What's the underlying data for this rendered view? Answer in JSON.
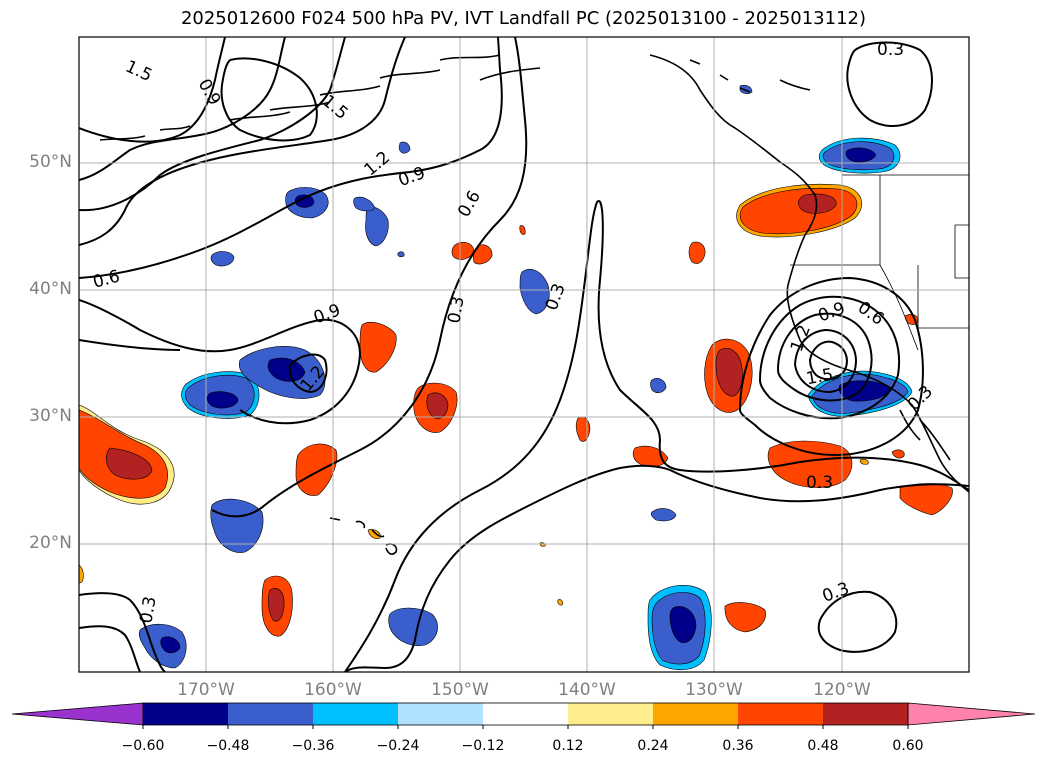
{
  "title": "2025012600 F024 500 hPa PV, IVT Landfall PC (2025013100 - 2025013112)",
  "longitude_labels": [
    "170°W",
    "160°W",
    "150°W",
    "140°W",
    "130°W",
    "120°W"
  ],
  "latitude_labels": [
    "50°N",
    "40°N",
    "30°N",
    "20°N"
  ],
  "colorbar": {
    "colors": [
      "#9a32cd",
      "#00008b",
      "#3a5fcd",
      "#00bfff",
      "#b0e2ff",
      "#ffffff",
      "#ffec8b",
      "#ffa500",
      "#ff4500",
      "#b22222",
      "#ff82ab"
    ],
    "tick_labels": [
      "−0.60",
      "−0.48",
      "−0.36",
      "−0.24",
      "−0.12",
      "0.12",
      "0.24",
      "0.36",
      "0.48",
      "0.60"
    ]
  },
  "contour_labels": [
    "1.5",
    "0.9",
    "1.5",
    "1.2",
    "0.9",
    "0.6",
    "0.3",
    "0.6",
    "0.9",
    "1.2",
    "0.3",
    "0.3",
    "0.9",
    "1.2",
    "1.5",
    "0.6",
    "0.3",
    "0.3",
    "0.3",
    "0.3"
  ]
}
